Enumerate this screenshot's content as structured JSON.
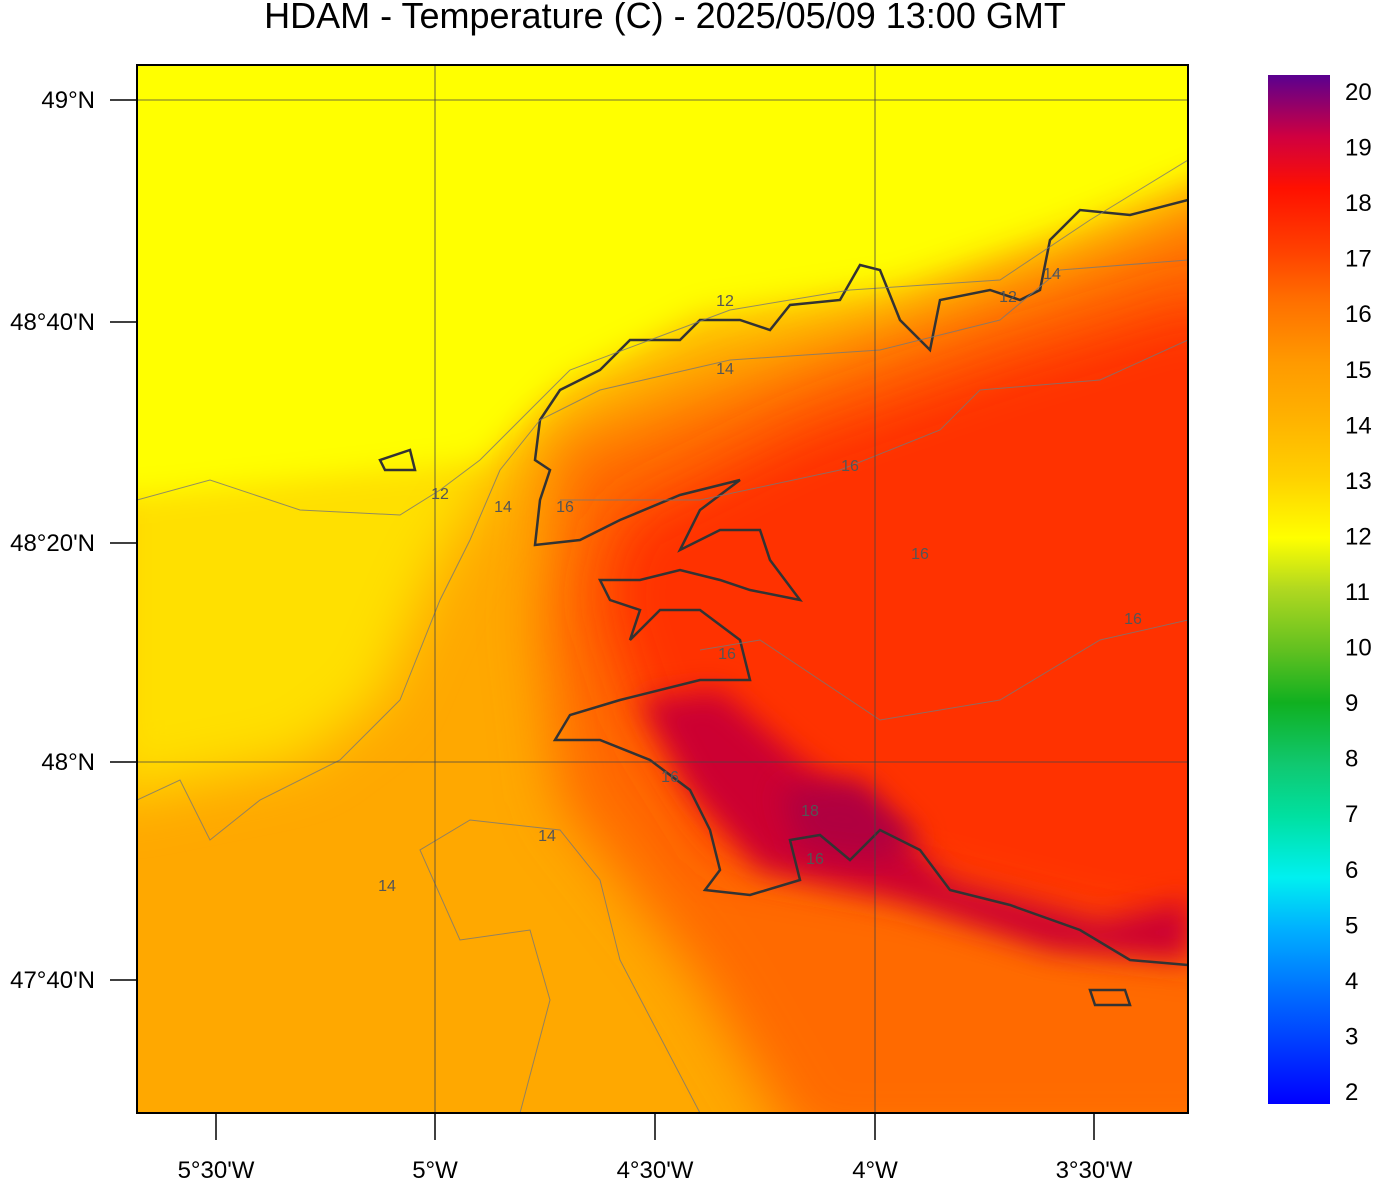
{
  "title": "HDAM - Temperature (C)  -  2025/05/09  13:00 GMT",
  "latitude_labels": [
    "49°N",
    "48°40'N",
    "48°20'N",
    "48°N",
    "47°40'N"
  ],
  "longitude_labels": [
    "5°30'W",
    "5°W",
    "4°30'W",
    "4°W",
    "3°30'W"
  ],
  "colorbar_labels": [
    20,
    19,
    18,
    17,
    16,
    15,
    14,
    13,
    12,
    11,
    10,
    9,
    8,
    7,
    6,
    5,
    4,
    3,
    2
  ],
  "contour_labels": [
    12,
    14,
    16,
    16,
    12,
    14,
    16,
    16,
    16,
    16,
    14,
    14,
    16,
    18,
    12,
    14
  ]
}
